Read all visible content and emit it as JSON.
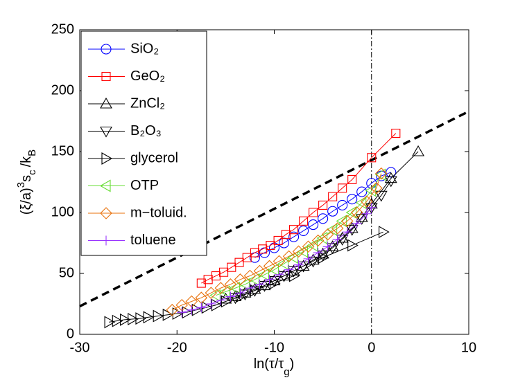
{
  "chart_data": {
    "type": "line",
    "x_label": [
      "ln(τ/τ",
      "g",
      ")"
    ],
    "y_label": [
      "(ξ/a)",
      "3",
      "s",
      "c",
      "/k",
      "B"
    ],
    "xlim": [
      -30,
      10
    ],
    "xticks": [
      -30,
      -20,
      -10,
      0,
      10
    ],
    "ylim": [
      0,
      250
    ],
    "yticks": [
      0,
      50,
      100,
      150,
      200,
      250
    ],
    "legend": "upper left",
    "dashed_line": {
      "x": [
        -30,
        10
      ],
      "y": [
        23,
        183
      ]
    },
    "vline": 0,
    "series": [
      {
        "name": "SiO₂",
        "color": "#0000ff",
        "marker": "circle",
        "x": [
          -12,
          -11,
          -10,
          -9,
          -8,
          -7,
          -6,
          -5,
          -4,
          -3,
          -2,
          -1,
          0,
          1,
          2
        ],
        "values": [
          63,
          67,
          71,
          75,
          80,
          85,
          90,
          95,
          101,
          106,
          111,
          117,
          124,
          130,
          133
        ]
      },
      {
        "name": "GeO₂",
        "color": "#ff0000",
        "marker": "square",
        "x": [
          -17.5,
          -16.8,
          -16,
          -15.2,
          -14.4,
          -13.6,
          -12.8,
          -12,
          -11.2,
          -10.4,
          -9.6,
          -8.8,
          -8,
          -7,
          -6,
          -5,
          -4,
          -3,
          -2,
          0,
          2.5
        ],
        "values": [
          42,
          45,
          48,
          51,
          55,
          59,
          63,
          67,
          70,
          73,
          77,
          82,
          86,
          93,
          100,
          106,
          113,
          120,
          127,
          145,
          165
        ]
      },
      {
        "name": "ZnCl₂",
        "color": "#000000",
        "marker": "triangle-up",
        "x": [
          -15,
          -14,
          -13,
          -12,
          -11,
          -10,
          -9,
          -8,
          -7,
          -6,
          -5,
          -4,
          -3,
          -2,
          -1,
          0,
          2,
          4.8
        ],
        "values": [
          29,
          31,
          34,
          37,
          40,
          44,
          48,
          52,
          56,
          61,
          66,
          72,
          79,
          87,
          96,
          107,
          128,
          150
        ]
      },
      {
        "name": "B₂O₃",
        "color": "#000000",
        "marker": "triangle-down",
        "x": [
          -14,
          -13,
          -12,
          -11,
          -10,
          -9,
          -8,
          -7,
          -6,
          -5,
          -4,
          -3,
          -2,
          -1,
          0,
          1,
          2
        ],
        "values": [
          30,
          33,
          36,
          40,
          44,
          48,
          52,
          56,
          60,
          65,
          71,
          78,
          86,
          95,
          104,
          114,
          126
        ]
      },
      {
        "name": "glycerol",
        "color": "#000000",
        "marker": "triangle-right",
        "x": [
          -27,
          -26.2,
          -25.4,
          -24.6,
          -23.8,
          -23,
          -22,
          -21,
          -20,
          -19,
          -18,
          -17,
          -16,
          -15,
          -13.5,
          -12,
          -10,
          -8,
          -5,
          -2,
          1.2
        ],
        "values": [
          10,
          11,
          12,
          12.5,
          13,
          14,
          15,
          16,
          17,
          18,
          20,
          22,
          24,
          27,
          31,
          36,
          42,
          48,
          63,
          73,
          84
        ]
      },
      {
        "name": "OTP",
        "color": "#66dd33",
        "marker": "triangle-left",
        "x": [
          -16,
          -15,
          -14,
          -13,
          -12,
          -11,
          -10,
          -9,
          -8,
          -7,
          -6,
          -5,
          -4,
          -3,
          -2,
          -1,
          0,
          1
        ],
        "values": [
          32,
          35,
          38,
          41,
          45,
          49,
          53,
          58,
          63,
          68,
          73,
          79,
          86,
          93,
          100,
          108,
          118,
          131
        ]
      },
      {
        "name": "m−toluid.",
        "color": "#e8700a",
        "marker": "diamond",
        "x": [
          -20.5,
          -19.5,
          -18.5,
          -17.5,
          -16.5,
          -15.5,
          -14.5,
          -13.5,
          -12.5,
          -11.5,
          -10.5,
          -9.5,
          -8.5,
          -7.5,
          -6.5,
          -5.5,
          -4.5,
          -3.5,
          -2.5,
          -1.5,
          -0.5,
          0.5,
          1
        ],
        "values": [
          20,
          24,
          27,
          30,
          34,
          38,
          41,
          45,
          48,
          52,
          56,
          60,
          64,
          68,
          72,
          77,
          82,
          87,
          93,
          100,
          109,
          120,
          132
        ]
      },
      {
        "name": "toluene",
        "color": "#9933ff",
        "marker": "plus",
        "x": [
          -19.5,
          -18.5,
          -17.5,
          -16.5,
          -15.5,
          -14.5,
          -13.5,
          -12.5,
          -11.5,
          -10.5,
          -9.5,
          -8.5,
          -7.5,
          -6.5,
          -5.5,
          -4.5,
          -3.5,
          -2.5,
          -1.5,
          -0.5,
          0
        ],
        "values": [
          18,
          20,
          22,
          25,
          28,
          31,
          34,
          38,
          41,
          45,
          49,
          53,
          57,
          62,
          67,
          72,
          78,
          84,
          91,
          99,
          104
        ]
      }
    ]
  }
}
